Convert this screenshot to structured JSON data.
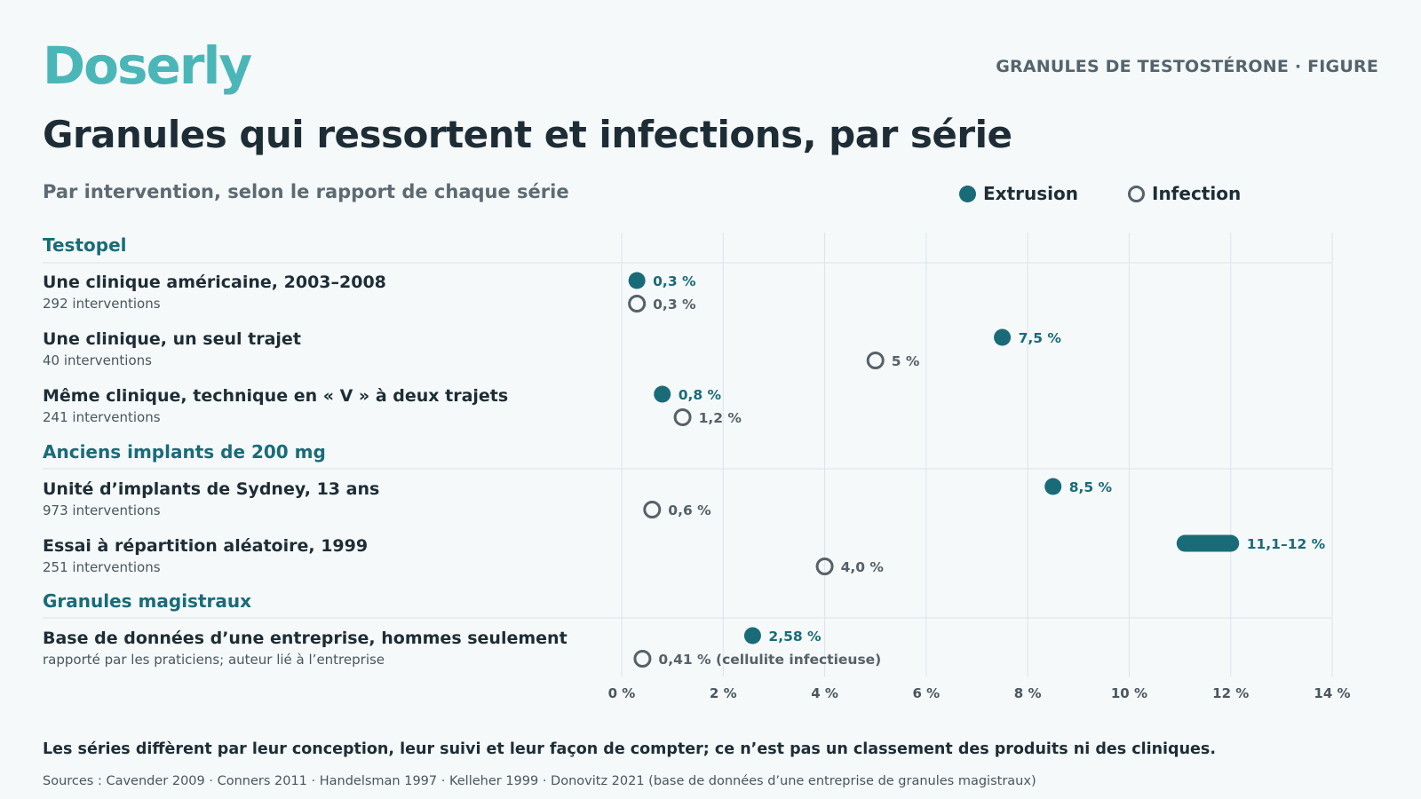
{
  "brand": {
    "logo": "Doserly",
    "kicker": "GRANULES DE TESTOSTÉRONE · FIGURE"
  },
  "title": "Granules qui ressortent et infections, par série",
  "subtitle": "Par intervention, selon le rapport de chaque série",
  "legend": {
    "extrusion": "Extrusion",
    "infection": "Infection"
  },
  "colors": {
    "extrusion": "#1a6b78",
    "infection": "#566168",
    "group": "#1a6b78",
    "grid": "#dde4e7",
    "tick": "#4a565d"
  },
  "groups": [
    {
      "label": "Testopel"
    },
    {
      "label": "Anciens implants de 200 mg"
    },
    {
      "label": "Granules magistraux"
    }
  ],
  "rows": [
    {
      "label": "Une clinique américaine, 2003–2008",
      "sub": "292 interventions"
    },
    {
      "label": "Une clinique, un seul trajet",
      "sub": "40 interventions"
    },
    {
      "label": "Même clinique, technique en « V » à deux trajets",
      "sub": "241 interventions"
    },
    {
      "label": "Unité d’implants de Sydney, 13 ans",
      "sub": "973 interventions"
    },
    {
      "label": "Essai à répartition aléatoire, 1999",
      "sub": "251 interventions"
    },
    {
      "label": "Base de données d’une entreprise, hommes seulement",
      "sub": "rapporté par les praticiens; auteur lié à l’entreprise"
    }
  ],
  "chart_data": {
    "type": "scatter",
    "xlim": [
      0,
      14
    ],
    "x_ticks": [
      0,
      2,
      4,
      6,
      8,
      10,
      12,
      14
    ],
    "x_tick_labels": [
      "0 %",
      "2 %",
      "4 %",
      "6 %",
      "8 %",
      "10 %",
      "12 %",
      "14 %"
    ],
    "series": [
      {
        "name": "Extrusion",
        "points": [
          {
            "row": 0,
            "x": 0.3,
            "label": "0,3 %"
          },
          {
            "row": 1,
            "x": 7.5,
            "label": "7,5 %"
          },
          {
            "row": 2,
            "x": 0.8,
            "label": "0,8 %"
          },
          {
            "row": 3,
            "x": 8.5,
            "label": "8,5 %"
          },
          {
            "row": 4,
            "x": [
              11.1,
              12
            ],
            "label": "11,1–12 %"
          },
          {
            "row": 5,
            "x": 2.58,
            "label": "2,58 %"
          }
        ]
      },
      {
        "name": "Infection",
        "points": [
          {
            "row": 0,
            "x": 0.3,
            "label": "0,3 %"
          },
          {
            "row": 1,
            "x": 5,
            "label": "5 %"
          },
          {
            "row": 2,
            "x": 1.2,
            "label": "1,2 %"
          },
          {
            "row": 3,
            "x": 0.6,
            "label": "0,6 %"
          },
          {
            "row": 4,
            "x": 4.0,
            "label": "4,0 %"
          },
          {
            "row": 5,
            "x": 0.41,
            "label": "0,41 % (cellulite infectieuse)"
          }
        ]
      }
    ]
  },
  "footer": {
    "note": "Les séries diffèrent par leur conception, leur suivi et leur façon de compter; ce n’est pas un classement des produits ni des cliniques.",
    "sources": "Sources : Cavender 2009 · Conners 2011 · Handelsman 1997 · Kelleher 1999 · Donovitz 2021 (base de données d’une entreprise de granules magistraux)"
  }
}
